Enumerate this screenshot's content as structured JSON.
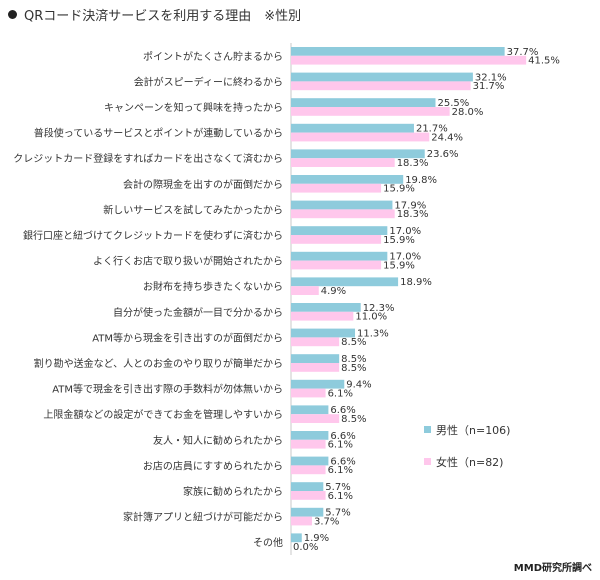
{
  "title": "QRコード決済サービスを利用する理由　※性別",
  "source": "MMD研究所調べ",
  "colors": {
    "male": "#8ecbdc",
    "female": "#ffc7ec",
    "axis": "#c8c8c8"
  },
  "chart_data": {
    "type": "bar",
    "orientation": "horizontal",
    "xlim": [
      0,
      45
    ],
    "grid": false,
    "legend": "right-lower",
    "value_suffix": "%",
    "categories": [
      "ポイントがたくさん貯まるから",
      "会計がスピーディーに終わるから",
      "キャンペーンを知って興味を持ったから",
      "普段使っているサービスとポイントが連動しているから",
      "クレジットカード登録をすればカードを出さなくて済むから",
      "会計の際現金を出すのが面倒だから",
      "新しいサービスを試してみたかったから",
      "銀行口座と紐づけてクレジットカードを使わずに済むから",
      "よく行くお店で取り扱いが開始されたから",
      "お財布を持ち歩きたくないから",
      "自分が使った金額が一目で分かるから",
      "ATM等から現金を引き出すのが面倒だから",
      "割り勘や送金など、人とのお金のやり取りが簡単だから",
      "ATM等で現金を引き出す際の手数料が勿体無いから",
      "上限金額などの設定ができてお金を管理しやすいから",
      "友人・知人に勧められたから",
      "お店の店員にすすめられたから",
      "家族に勧められたから",
      "家計簿アプリと紐づけが可能だから",
      "その他"
    ],
    "series": [
      {
        "name": "男性（n=106)",
        "color": "#8ecbdc",
        "values": [
          37.7,
          32.1,
          25.5,
          21.7,
          23.6,
          19.8,
          17.9,
          17.0,
          17.0,
          18.9,
          12.3,
          11.3,
          8.5,
          9.4,
          6.6,
          6.6,
          6.6,
          5.7,
          5.7,
          1.9
        ]
      },
      {
        "name": "女性（n=82)",
        "color": "#ffc7ec",
        "values": [
          41.5,
          31.7,
          28.0,
          24.4,
          18.3,
          15.9,
          18.3,
          15.9,
          15.9,
          4.9,
          11.0,
          8.5,
          8.5,
          6.1,
          8.5,
          6.1,
          6.1,
          6.1,
          3.7,
          0.0
        ]
      }
    ]
  }
}
